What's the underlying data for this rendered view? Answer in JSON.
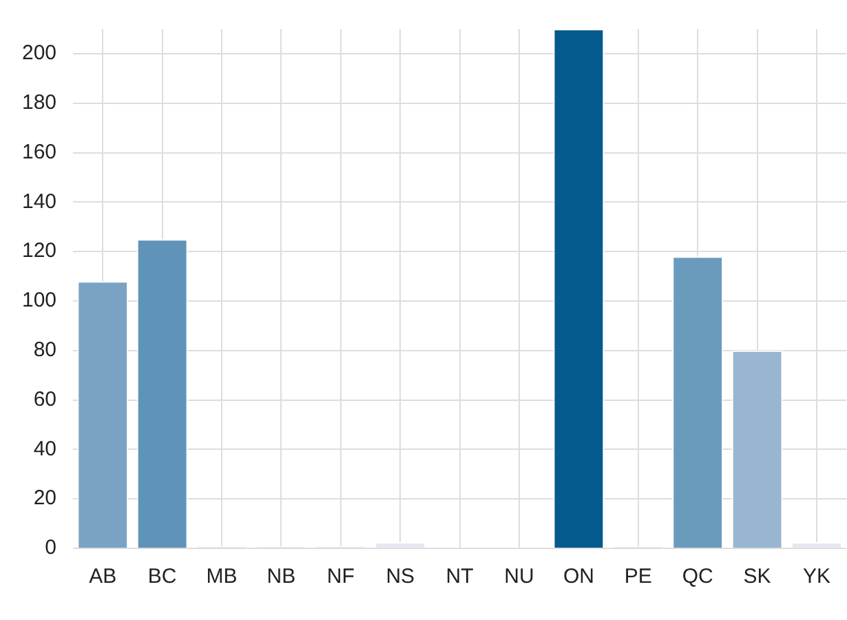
{
  "chart_data": {
    "type": "bar",
    "categories": [
      "AB",
      "BC",
      "MB",
      "NB",
      "NF",
      "NS",
      "NT",
      "NU",
      "ON",
      "PE",
      "QC",
      "SK",
      "YK"
    ],
    "values": [
      108,
      125,
      1,
      1,
      1,
      2.5,
      0,
      0,
      210,
      1,
      118,
      80,
      2.5
    ],
    "colors": [
      "#7aa2c3",
      "#5f93b8",
      "#ecebf3",
      "#ecebf3",
      "#ecebf3",
      "#e8e7f1",
      "#f4f4f8",
      "#f4f4f8",
      "#045a8d",
      "#ecebf3",
      "#6a9bbd",
      "#98b6d1",
      "#e8e7f1"
    ],
    "ylim": [
      0,
      210
    ],
    "yticks": [
      0,
      20,
      40,
      60,
      80,
      100,
      120,
      140,
      160,
      180,
      200
    ],
    "grid": true
  }
}
